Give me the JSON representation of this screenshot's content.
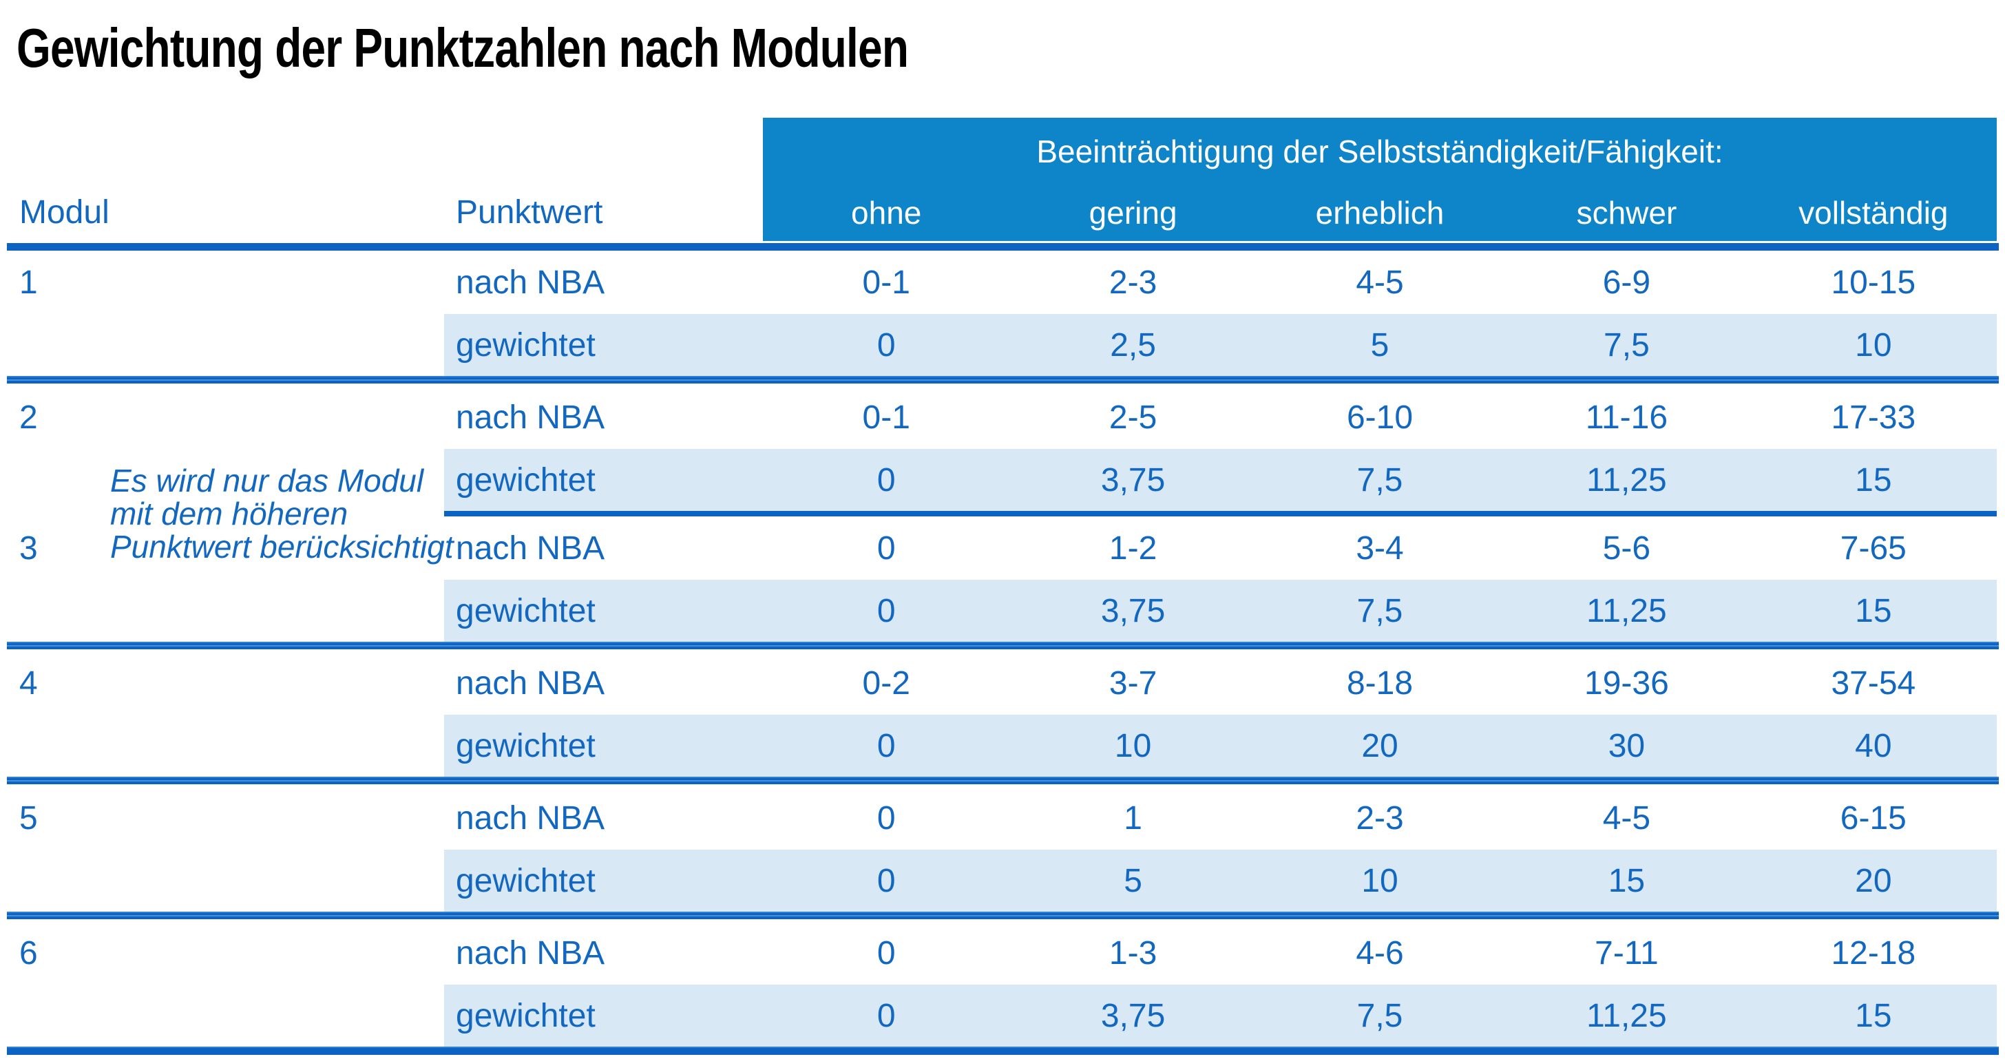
{
  "title": "Gewichtung der Punktzahlen nach Modulen",
  "table": {
    "col_headers": {
      "modul": "Modul",
      "punktwert": "Punktwert"
    },
    "impairment_header": "Beeinträchtigung der Selbstständigkeit/Fähigkeit:",
    "severity_levels": [
      "ohne",
      "gering",
      "erheblich",
      "schwer",
      "vollständig"
    ],
    "row_labels": {
      "nba": "nach NBA",
      "weighted": "gewichtet"
    },
    "note_lines": [
      "Es wird nur das Modul",
      "mit dem höheren",
      "Punktwert berücksichtigt"
    ],
    "modules": [
      {
        "modul": "1",
        "nba": [
          "0-1",
          "2-3",
          "4-5",
          "6-9",
          "10-15"
        ],
        "gewichtet": [
          "0",
          "2,5",
          "5",
          "7,5",
          "10"
        ]
      },
      {
        "modul": "2",
        "nba": [
          "0-1",
          "2-5",
          "6-10",
          "11-16",
          "17-33"
        ],
        "gewichtet": [
          "0",
          "3,75",
          "7,5",
          "11,25",
          "15"
        ]
      },
      {
        "modul": "3",
        "nba": [
          "0",
          "1-2",
          "3-4",
          "5-6",
          "7-65"
        ],
        "gewichtet": [
          "0",
          "3,75",
          "7,5",
          "11,25",
          "15"
        ]
      },
      {
        "modul": "4",
        "nba": [
          "0-2",
          "3-7",
          "8-18",
          "19-36",
          "37-54"
        ],
        "gewichtet": [
          "0",
          "10",
          "20",
          "30",
          "40"
        ]
      },
      {
        "modul": "5",
        "nba": [
          "0",
          "1",
          "2-3",
          "4-5",
          "6-15"
        ],
        "gewichtet": [
          "0",
          "5",
          "10",
          "15",
          "20"
        ]
      },
      {
        "modul": "6",
        "nba": [
          "0",
          "1-3",
          "4-6",
          "7-11",
          "12-18"
        ],
        "gewichtet": [
          "0",
          "3,75",
          "7,5",
          "11,25",
          "15"
        ]
      }
    ]
  },
  "colors": {
    "header_fill": "#0e85c9",
    "separator_line": "#0c63c2",
    "text_blue": "#1268c0",
    "weighted_row_bg": "#d8e8f5",
    "header_text": "#ffffff",
    "title_text": "#000000",
    "page_bg": "#ffffff"
  }
}
